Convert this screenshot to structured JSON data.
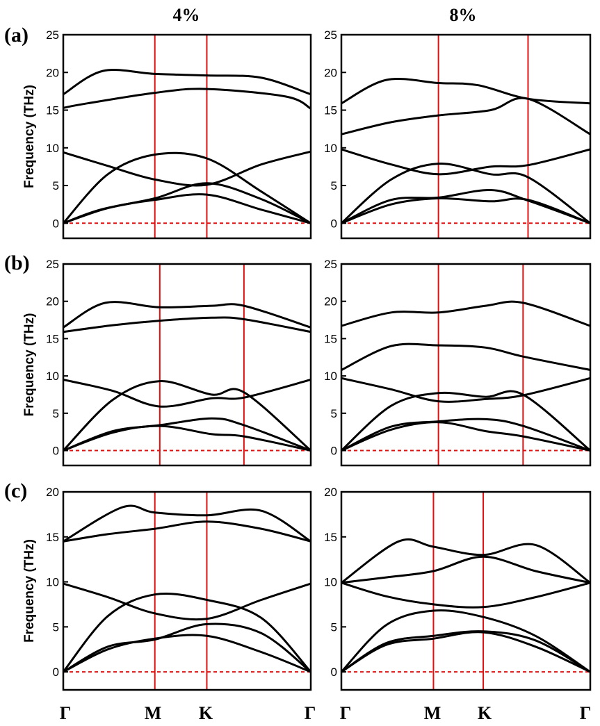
{
  "column_titles": [
    "4%",
    "8%"
  ],
  "row_labels": [
    "(a)",
    "(b)",
    "(c)"
  ],
  "x_path_labels": [
    "Γ",
    "M",
    "K",
    "Γ"
  ],
  "colors": {
    "band": "#000000",
    "hs_line": "#e01010",
    "zero_line": "#e01010",
    "frame": "#000000"
  },
  "chart_data": [
    {
      "id": "a-4",
      "type": "line",
      "row_label": "(a)",
      "column_title": "4%",
      "ylabel": "Frequency (THz)",
      "ylim": [
        -2,
        25
      ],
      "yticks": [
        0,
        5,
        10,
        15,
        20,
        25
      ],
      "xlim": [
        0,
        1
      ],
      "high_symmetry": [
        {
          "label": "M",
          "x": 0.37
        },
        {
          "label": "K",
          "x": 0.58
        }
      ],
      "zero_line": 0,
      "series": [
        {
          "name": "band-1",
          "x": [
            0,
            0.15,
            0.37,
            0.58,
            0.8,
            1
          ],
          "y": [
            0,
            1.8,
            3.3,
            5.3,
            3.2,
            0
          ]
        },
        {
          "name": "band-2",
          "x": [
            0,
            0.18,
            0.37,
            0.58,
            0.8,
            1
          ],
          "y": [
            0,
            2.0,
            3.1,
            3.8,
            1.8,
            0
          ]
        },
        {
          "name": "band-3",
          "x": [
            0,
            0.18,
            0.37,
            0.58,
            0.8,
            1
          ],
          "y": [
            0,
            6.5,
            9.1,
            8.6,
            4.2,
            0
          ]
        },
        {
          "name": "band-4",
          "x": [
            0,
            0.18,
            0.37,
            0.58,
            0.8,
            1
          ],
          "y": [
            9.4,
            7.6,
            5.8,
            5.1,
            7.8,
            9.5
          ]
        },
        {
          "name": "band-5",
          "x": [
            0,
            0.08,
            0.37,
            0.58,
            0.9,
            1
          ],
          "y": [
            15.3,
            15.8,
            17.3,
            17.8,
            16.8,
            15.2
          ]
        },
        {
          "name": "band-6",
          "x": [
            0,
            0.16,
            0.37,
            0.58,
            0.8,
            1
          ],
          "y": [
            17.1,
            20.2,
            19.8,
            19.6,
            19.3,
            17.1
          ]
        }
      ]
    },
    {
      "id": "a-8",
      "type": "line",
      "row_label": "(a)",
      "column_title": "8%",
      "ylabel": "",
      "ylim": [
        -2,
        25
      ],
      "yticks": [
        0,
        5,
        10,
        15,
        20,
        25
      ],
      "xlim": [
        0,
        1
      ],
      "high_symmetry": [
        {
          "label": "M",
          "x": 0.39
        },
        {
          "label": "K",
          "x": 0.75
        }
      ],
      "zero_line": 0,
      "series": [
        {
          "name": "band-1",
          "x": [
            0,
            0.2,
            0.39,
            0.6,
            0.75,
            1
          ],
          "y": [
            0,
            3.1,
            3.4,
            4.4,
            3.0,
            0
          ]
        },
        {
          "name": "band-2",
          "x": [
            0,
            0.2,
            0.39,
            0.6,
            0.75,
            1
          ],
          "y": [
            0,
            2.5,
            3.3,
            2.9,
            3.1,
            0
          ]
        },
        {
          "name": "band-3",
          "x": [
            0,
            0.2,
            0.39,
            0.6,
            0.75,
            1
          ],
          "y": [
            0,
            5.8,
            7.9,
            6.5,
            6.1,
            0
          ]
        },
        {
          "name": "band-4",
          "x": [
            0,
            0.2,
            0.39,
            0.6,
            0.75,
            1
          ],
          "y": [
            9.8,
            7.8,
            6.5,
            7.5,
            7.7,
            9.8
          ]
        },
        {
          "name": "band-5",
          "x": [
            0,
            0.2,
            0.39,
            0.6,
            0.75,
            1
          ],
          "y": [
            11.8,
            13.4,
            14.3,
            15.0,
            16.5,
            11.8
          ]
        },
        {
          "name": "band-6",
          "x": [
            0,
            0.18,
            0.39,
            0.55,
            0.75,
            1
          ],
          "y": [
            15.9,
            19.0,
            18.6,
            18.3,
            16.5,
            15.9
          ]
        }
      ]
    },
    {
      "id": "b-4",
      "type": "line",
      "row_label": "(b)",
      "column_title": "4%",
      "ylabel": "Frequency (THz)",
      "ylim": [
        -2,
        25
      ],
      "yticks": [
        0,
        5,
        10,
        15,
        20,
        25
      ],
      "xlim": [
        0,
        1
      ],
      "high_symmetry": [
        {
          "label": "M",
          "x": 0.39
        },
        {
          "label": "K",
          "x": 0.73
        }
      ],
      "zero_line": 0,
      "series": [
        {
          "name": "band-1",
          "x": [
            0,
            0.2,
            0.39,
            0.6,
            0.73,
            1
          ],
          "y": [
            0,
            2.6,
            3.4,
            4.3,
            3.4,
            0
          ]
        },
        {
          "name": "band-2",
          "x": [
            0,
            0.2,
            0.39,
            0.6,
            0.73,
            1
          ],
          "y": [
            0,
            2.4,
            3.3,
            2.2,
            1.9,
            0
          ]
        },
        {
          "name": "band-3",
          "x": [
            0,
            0.2,
            0.39,
            0.6,
            0.73,
            1
          ],
          "y": [
            0,
            6.8,
            9.3,
            7.5,
            7.8,
            0
          ]
        },
        {
          "name": "band-4",
          "x": [
            0,
            0.2,
            0.39,
            0.6,
            0.73,
            1
          ],
          "y": [
            9.5,
            8.0,
            5.9,
            7.0,
            7.1,
            9.5
          ]
        },
        {
          "name": "band-5",
          "x": [
            0,
            0.2,
            0.39,
            0.6,
            0.73,
            1
          ],
          "y": [
            15.9,
            16.8,
            17.4,
            17.8,
            17.6,
            15.9
          ]
        },
        {
          "name": "band-6",
          "x": [
            0,
            0.17,
            0.39,
            0.6,
            0.73,
            1
          ],
          "y": [
            16.5,
            19.8,
            19.2,
            19.4,
            19.4,
            16.5
          ]
        }
      ]
    },
    {
      "id": "b-8",
      "type": "line",
      "row_label": "(b)",
      "column_title": "8%",
      "ylabel": "",
      "ylim": [
        -2,
        25
      ],
      "yticks": [
        0,
        5,
        10,
        15,
        20,
        25
      ],
      "xlim": [
        0,
        1
      ],
      "high_symmetry": [
        {
          "label": "M",
          "x": 0.39
        },
        {
          "label": "K",
          "x": 0.73
        }
      ],
      "zero_line": 0,
      "series": [
        {
          "name": "band-1",
          "x": [
            0,
            0.2,
            0.39,
            0.58,
            0.73,
            1
          ],
          "y": [
            0,
            3.2,
            3.9,
            4.2,
            3.3,
            0
          ]
        },
        {
          "name": "band-2",
          "x": [
            0,
            0.2,
            0.39,
            0.58,
            0.73,
            1
          ],
          "y": [
            0,
            2.8,
            3.8,
            2.6,
            1.9,
            0
          ]
        },
        {
          "name": "band-3",
          "x": [
            0,
            0.2,
            0.39,
            0.58,
            0.73,
            1
          ],
          "y": [
            0,
            6.0,
            7.7,
            7.2,
            7.5,
            0
          ]
        },
        {
          "name": "band-4",
          "x": [
            0,
            0.2,
            0.39,
            0.58,
            0.73,
            1
          ],
          "y": [
            9.7,
            8.2,
            6.6,
            6.9,
            7.4,
            9.7
          ]
        },
        {
          "name": "band-5",
          "x": [
            0,
            0.2,
            0.39,
            0.58,
            0.73,
            1
          ],
          "y": [
            10.8,
            14.0,
            14.1,
            13.8,
            12.6,
            10.8
          ]
        },
        {
          "name": "band-6",
          "x": [
            0,
            0.2,
            0.39,
            0.58,
            0.73,
            1
          ],
          "y": [
            16.7,
            18.5,
            18.5,
            19.4,
            19.8,
            16.7
          ]
        }
      ]
    },
    {
      "id": "c-4",
      "type": "line",
      "row_label": "(c)",
      "column_title": "4%",
      "ylabel": "Frequency (THz)",
      "ylim": [
        -2,
        20
      ],
      "yticks": [
        0,
        5,
        10,
        15,
        20
      ],
      "xlim": [
        0,
        1
      ],
      "high_symmetry": [
        {
          "label": "M",
          "x": 0.37
        },
        {
          "label": "K",
          "x": 0.58
        }
      ],
      "zero_line": 0,
      "series": [
        {
          "name": "band-1",
          "x": [
            0,
            0.18,
            0.37,
            0.58,
            0.8,
            1
          ],
          "y": [
            0,
            2.8,
            3.6,
            5.3,
            4.3,
            0
          ]
        },
        {
          "name": "band-2",
          "x": [
            0,
            0.18,
            0.37,
            0.58,
            0.8,
            1
          ],
          "y": [
            0,
            2.5,
            3.7,
            4.0,
            2.2,
            0
          ]
        },
        {
          "name": "band-3",
          "x": [
            0,
            0.18,
            0.37,
            0.58,
            0.8,
            1
          ],
          "y": [
            0,
            6.2,
            8.6,
            8.0,
            6.0,
            0
          ]
        },
        {
          "name": "band-4",
          "x": [
            0,
            0.18,
            0.37,
            0.58,
            0.8,
            1
          ],
          "y": [
            9.8,
            8.3,
            6.5,
            5.9,
            8.0,
            9.8
          ]
        },
        {
          "name": "band-5",
          "x": [
            0,
            0.18,
            0.37,
            0.58,
            0.8,
            1
          ],
          "y": [
            14.5,
            15.3,
            15.9,
            16.7,
            15.9,
            14.5
          ]
        },
        {
          "name": "band-6",
          "x": [
            0,
            0.24,
            0.37,
            0.58,
            0.8,
            1
          ],
          "y": [
            14.5,
            18.3,
            17.7,
            17.4,
            17.9,
            14.5
          ]
        }
      ]
    },
    {
      "id": "c-8",
      "type": "line",
      "row_label": "(c)",
      "column_title": "8%",
      "ylabel": "",
      "ylim": [
        -2,
        20
      ],
      "yticks": [
        0,
        5,
        10,
        15,
        20
      ],
      "xlim": [
        0,
        1
      ],
      "high_symmetry": [
        {
          "label": "M",
          "x": 0.37
        },
        {
          "label": "K",
          "x": 0.57
        }
      ],
      "zero_line": 0,
      "series": [
        {
          "name": "band-1",
          "x": [
            0,
            0.18,
            0.37,
            0.57,
            0.78,
            1
          ],
          "y": [
            0,
            3.2,
            4.0,
            4.5,
            3.5,
            0
          ]
        },
        {
          "name": "band-2",
          "x": [
            0,
            0.18,
            0.37,
            0.57,
            0.78,
            1
          ],
          "y": [
            0,
            3.0,
            3.7,
            4.4,
            2.8,
            0
          ]
        },
        {
          "name": "band-3",
          "x": [
            0,
            0.18,
            0.37,
            0.57,
            0.78,
            1
          ],
          "y": [
            0,
            5.2,
            6.8,
            6.1,
            4.0,
            0
          ]
        },
        {
          "name": "band-4",
          "x": [
            0,
            0.18,
            0.37,
            0.57,
            0.78,
            1
          ],
          "y": [
            9.9,
            8.4,
            7.5,
            7.2,
            8.3,
            9.9
          ]
        },
        {
          "name": "band-5",
          "x": [
            0,
            0.18,
            0.37,
            0.57,
            0.78,
            1
          ],
          "y": [
            9.9,
            10.5,
            11.2,
            12.8,
            11.2,
            9.9
          ]
        },
        {
          "name": "band-6",
          "x": [
            0,
            0.23,
            0.37,
            0.57,
            0.78,
            1
          ],
          "y": [
            9.9,
            14.5,
            13.9,
            13.0,
            14.1,
            9.9
          ]
        }
      ]
    }
  ]
}
